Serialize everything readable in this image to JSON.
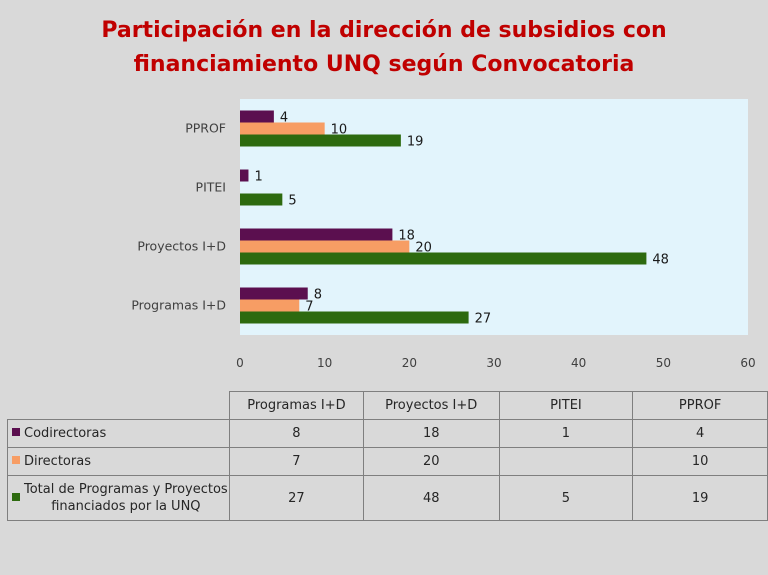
{
  "chart_data": {
    "type": "bar",
    "orientation": "horizontal",
    "title_lines": [
      "Participación en la dirección de subsidios con",
      "financiamiento UNQ según Convocatoria"
    ],
    "categories": [
      "Programas I+D",
      "Proyectos I+D",
      "PITEI",
      "PPROF"
    ],
    "series": [
      {
        "name": "Codirectoras",
        "color": "#5b0f4f",
        "values": [
          8,
          18,
          1,
          4
        ]
      },
      {
        "name": "Directoras",
        "color": "#f79d64",
        "values": [
          7,
          20,
          null,
          10
        ]
      },
      {
        "name": "Total de Programas y Proyectos financiados por la UNQ",
        "color": "#2d6a0f",
        "values": [
          27,
          48,
          5,
          19
        ]
      }
    ],
    "xlim": [
      0,
      60
    ],
    "x_ticks": [
      0,
      10,
      20,
      30,
      40,
      50,
      60
    ],
    "plot_background": "#e2f4fc",
    "grid": false,
    "legend": "data table below chart"
  },
  "table": {
    "row_labels": [
      [
        "Codirectoras"
      ],
      [
        "Directoras"
      ],
      [
        "Total de Programas y Proyectos",
        "financiados por la UNQ"
      ]
    ]
  }
}
